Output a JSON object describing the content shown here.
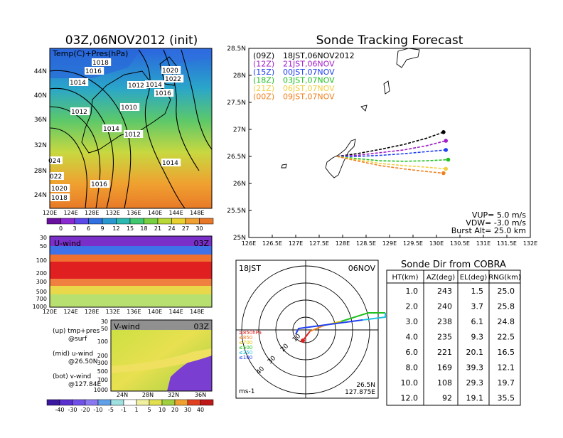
{
  "map_panel": {
    "title": "03Z,06NOV2012 (init)",
    "label": "Temp(C)+Pres(hPa)",
    "lat_ticks": [
      "44N",
      "40N",
      "36N",
      "32N",
      "28N",
      "24N"
    ],
    "lon_ticks": [
      "120E",
      "124E",
      "128E",
      "132E",
      "136E",
      "140E",
      "144E",
      "148E"
    ],
    "isobar_labels": [
      "1018",
      "1016",
      "1014",
      "1012",
      "1010",
      "1014",
      "1012",
      "1020",
      "1022",
      "1014",
      "1016",
      "1014",
      "1016",
      "024",
      "022",
      "1020",
      "1018",
      "1012"
    ],
    "colorbar_ticks": [
      "0",
      "3",
      "6",
      "9",
      "12",
      "15",
      "18",
      "21",
      "24",
      "27",
      "30"
    ]
  },
  "u_panel": {
    "label": "U-wind",
    "time": "03Z",
    "levels": [
      "30",
      "50",
      "100",
      "200",
      "300",
      "500",
      "700",
      "1000"
    ],
    "lon_ticks": [
      "120E",
      "124E",
      "128E",
      "132E",
      "136E",
      "140E",
      "144E",
      "148E"
    ]
  },
  "v_panel": {
    "label": "V-wind",
    "time": "03Z",
    "levels": [
      "30",
      "50",
      "100",
      "200",
      "300",
      "500",
      "700",
      "1000"
    ],
    "lat_ticks": [
      "24N",
      "28N",
      "32N",
      "36N"
    ]
  },
  "legend_notes": {
    "up": "(up) tmp+pres",
    "up2": "@surf",
    "mid": "(mid) u-wind",
    "mid2": "@26.50N",
    "bot": "(bot) v-wind",
    "bot2": "@127.84E"
  },
  "wind_colorbar_ticks": [
    "-40",
    "-30",
    "-20",
    "-10",
    "-5",
    "-1",
    "1",
    "5",
    "10",
    "20",
    "30",
    "40"
  ],
  "track": {
    "title": "Sonde Tracking Forecast",
    "y_ticks": [
      "28.5N",
      "28N",
      "27.5N",
      "27N",
      "26.5N",
      "26N",
      "25.5N",
      "25N"
    ],
    "x_ticks": [
      "126E",
      "126.5E",
      "127E",
      "127.5E",
      "128E",
      "128.5E",
      "129E",
      "129.5E",
      "130E",
      "130.5E",
      "131E",
      "131.5E",
      "132E"
    ],
    "legend": [
      {
        "code": "(09Z)",
        "text": "18JST,06NOV2012",
        "color": "#000000"
      },
      {
        "code": "(12Z)",
        "text": "21JST,06NOV",
        "color": "#a020c8"
      },
      {
        "code": "(15Z)",
        "text": "00JST,07NOV",
        "color": "#2040f0"
      },
      {
        "code": "(18Z)",
        "text": "03JST,07NOV",
        "color": "#20c020"
      },
      {
        "code": "(21Z)",
        "text": "06JST,07NOV",
        "color": "#f0d040"
      },
      {
        "code": "(00Z)",
        "text": "09JST,07NOV",
        "color": "#f08020"
      }
    ],
    "params": [
      "VUP= 5.0 m/s",
      "VDW= -3.0 m/s",
      "Burst Alt= 25.0 km"
    ]
  },
  "chart_data": {
    "type": "line",
    "title": "Sonde Tracking Forecast",
    "xlim": [
      126,
      132
    ],
    "ylim": [
      25,
      28.5
    ],
    "launch": [
      127.875,
      26.5
    ],
    "series": [
      {
        "name": "(09Z) 18JST,06NOV2012",
        "color": "#000000",
        "points": [
          [
            127.875,
            26.5
          ],
          [
            128.3,
            26.55
          ],
          [
            128.8,
            26.63
          ],
          [
            129.3,
            26.72
          ],
          [
            129.8,
            26.84
          ],
          [
            130.15,
            26.95
          ]
        ]
      },
      {
        "name": "(12Z) 21JST,06NOV",
        "color": "#a020c8",
        "points": [
          [
            127.875,
            26.5
          ],
          [
            128.3,
            26.52
          ],
          [
            128.8,
            26.57
          ],
          [
            129.3,
            26.62
          ],
          [
            129.8,
            26.7
          ],
          [
            130.2,
            26.79
          ]
        ]
      },
      {
        "name": "(15Z) 00JST,07NOV",
        "color": "#2040f0",
        "points": [
          [
            127.875,
            26.5
          ],
          [
            128.3,
            26.5
          ],
          [
            128.8,
            26.52
          ],
          [
            129.3,
            26.55
          ],
          [
            129.8,
            26.59
          ],
          [
            130.2,
            26.62
          ]
        ]
      },
      {
        "name": "(18Z) 03JST,07NOV",
        "color": "#20c020",
        "points": [
          [
            127.875,
            26.5
          ],
          [
            128.3,
            26.46
          ],
          [
            128.8,
            26.42
          ],
          [
            129.3,
            26.41
          ],
          [
            129.8,
            26.42
          ],
          [
            130.25,
            26.44
          ]
        ]
      },
      {
        "name": "(21Z) 06JST,07NOV",
        "color": "#f0d040",
        "points": [
          [
            127.875,
            26.5
          ],
          [
            128.3,
            26.44
          ],
          [
            128.8,
            26.37
          ],
          [
            129.3,
            26.33
          ],
          [
            129.8,
            26.3
          ],
          [
            130.2,
            26.27
          ]
        ]
      },
      {
        "name": "(00Z) 09JST,07NOV",
        "color": "#f08020",
        "points": [
          [
            127.875,
            26.5
          ],
          [
            128.3,
            26.42
          ],
          [
            128.8,
            26.33
          ],
          [
            129.3,
            26.27
          ],
          [
            129.8,
            26.22
          ],
          [
            130.15,
            26.19
          ]
        ]
      }
    ]
  },
  "polar": {
    "time_label": "18JST",
    "date_label": "06NOV",
    "unit": "ms-1",
    "ring_labels": [
      "10",
      "20",
      "30",
      "40"
    ],
    "level_legend": [
      {
        "text": "≥850hPa",
        "color": "#e02020"
      },
      {
        "text": "≤850",
        "color": "#f08020"
      },
      {
        "text": "≤700",
        "color": "#e0c000"
      },
      {
        "text": "≤500",
        "color": "#20c020"
      },
      {
        "text": "≤250",
        "color": "#20c0e0"
      },
      {
        "text": "≤100",
        "color": "#2040f0"
      }
    ],
    "coord1": "26.5N",
    "coord2": "127.875E"
  },
  "cobra": {
    "title": "Sonde Dir from COBRA",
    "headers": [
      "HT(km)",
      "AZ(deg)",
      "EL(deg)",
      "RNG(km)"
    ],
    "rows": [
      [
        "1.0",
        "243",
        "1.5",
        "25.0"
      ],
      [
        "2.0",
        "240",
        "3.7",
        "25.8"
      ],
      [
        "3.0",
        "238",
        "6.1",
        "24.8"
      ],
      [
        "4.0",
        "235",
        "9.3",
        "22.5"
      ],
      [
        "6.0",
        "221",
        "20.1",
        "16.5"
      ],
      [
        "8.0",
        "169",
        "39.3",
        "12.1"
      ],
      [
        "10.0",
        "108",
        "29.3",
        "19.7"
      ],
      [
        "12.0",
        "92",
        "19.1",
        "35.5"
      ]
    ]
  }
}
